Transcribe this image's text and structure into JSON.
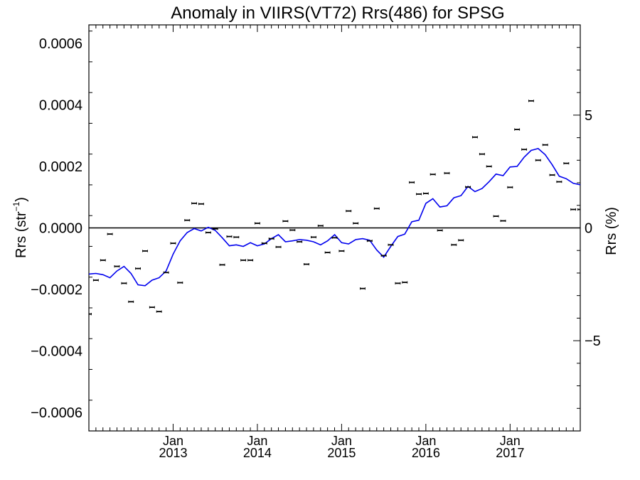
{
  "chart_data": {
    "type": "scatter",
    "title": "Anomaly in VIIRS(VT72) Rrs(486) for SPSG",
    "ylabel_left": "Rrs (str",
    "ylabel_left_sup": "−1",
    "ylabel_left_close": ")",
    "ylabel_right": "Rrs (%)",
    "xlim": [
      2012.0,
      2017.833
    ],
    "ylim": [
      -0.00066,
      0.00066
    ],
    "ylim_right": [
      -9.0,
      9.0
    ],
    "y_ticks": [
      {
        "value": 0.0006,
        "label": "0.0006"
      },
      {
        "value": 0.0004,
        "label": "0.0004"
      },
      {
        "value": 0.0002,
        "label": "0.0002"
      },
      {
        "value": 0.0,
        "label": "0.0000"
      },
      {
        "value": -0.0002,
        "label": "−0.0002"
      },
      {
        "value": -0.0004,
        "label": "−0.0004"
      },
      {
        "value": -0.0006,
        "label": "−0.0006"
      }
    ],
    "y_right_ticks": [
      {
        "value": 5,
        "label": "5"
      },
      {
        "value": 0,
        "label": "0"
      },
      {
        "value": -5,
        "label": "−5"
      }
    ],
    "x_ticks": [
      {
        "value": 2013.0,
        "month": "Jan",
        "year": "2013"
      },
      {
        "value": 2014.0,
        "month": "Jan",
        "year": "2014"
      },
      {
        "value": 2015.0,
        "month": "Jan",
        "year": "2015"
      },
      {
        "value": 2016.0,
        "month": "Jan",
        "year": "2016"
      },
      {
        "value": 2017.0,
        "month": "Jan",
        "year": "2017"
      }
    ],
    "zero_line": true,
    "grid": false,
    "series": [
      {
        "kind": "points",
        "color": "#000000",
        "x": [
          2012.0,
          2012.083,
          2012.167,
          2012.25,
          2012.333,
          2012.417,
          2012.5,
          2012.583,
          2012.667,
          2012.75,
          2012.833,
          2012.917,
          2013.0,
          2013.083,
          2013.167,
          2013.25,
          2013.333,
          2013.417,
          2013.5,
          2013.583,
          2013.667,
          2013.75,
          2013.833,
          2013.917,
          2014.0,
          2014.083,
          2014.167,
          2014.25,
          2014.333,
          2014.417,
          2014.5,
          2014.583,
          2014.667,
          2014.75,
          2014.833,
          2014.917,
          2015.0,
          2015.083,
          2015.167,
          2015.25,
          2015.333,
          2015.417,
          2015.5,
          2015.583,
          2015.667,
          2015.75,
          2015.833,
          2015.917,
          2016.0,
          2016.083,
          2016.167,
          2016.25,
          2016.333,
          2016.417,
          2016.5,
          2016.583,
          2016.667,
          2016.75,
          2016.833,
          2016.917,
          2017.0,
          2017.083,
          2017.167,
          2017.25,
          2017.333,
          2017.417,
          2017.5,
          2017.583,
          2017.667,
          2017.75,
          2017.833
        ],
        "y": [
          -0.00028,
          -0.00017,
          -0.000105,
          -2e-05,
          -0.000125,
          -0.00018,
          -0.00024,
          -0.000132,
          -7.5e-05,
          -0.000258,
          -0.000272,
          -0.000145,
          -5e-05,
          -0.000178,
          2.5e-05,
          8e-05,
          7.8e-05,
          -1.5e-05,
          -3e-06,
          -0.00012,
          -2.8e-05,
          -3e-05,
          -0.000105,
          -0.000105,
          1.5e-05,
          -5e-05,
          -3.5e-05,
          -6.2e-05,
          2.2e-05,
          -7e-06,
          -4.5e-05,
          -0.000118,
          -3e-05,
          7e-06,
          -8e-05,
          -3.2e-05,
          -7.5e-05,
          5.5e-05,
          1.5e-05,
          -0.000197,
          -4.2e-05,
          6.3e-05,
          -9e-05,
          -5.5e-05,
          -0.00018,
          -0.000177,
          0.000148,
          0.00011,
          0.000112,
          0.000174,
          -8e-06,
          0.000178,
          -5.5e-05,
          -4e-05,
          0.000133,
          0.000295,
          0.00024,
          0.0002,
          3.8e-05,
          2.3e-05,
          0.000132,
          0.00032,
          0.000255,
          0.000413,
          0.00022,
          0.00027,
          0.000172,
          0.00015,
          0.00021,
          6e-05,
          6e-05
        ]
      },
      {
        "kind": "line",
        "color": "#0000ee",
        "x": [
          2012.0,
          2012.083,
          2012.167,
          2012.25,
          2012.333,
          2012.417,
          2012.5,
          2012.583,
          2012.667,
          2012.75,
          2012.833,
          2012.917,
          2013.0,
          2013.083,
          2013.167,
          2013.25,
          2013.333,
          2013.417,
          2013.5,
          2013.583,
          2013.667,
          2013.75,
          2013.833,
          2013.917,
          2014.0,
          2014.083,
          2014.167,
          2014.25,
          2014.333,
          2014.417,
          2014.5,
          2014.583,
          2014.667,
          2014.75,
          2014.833,
          2014.917,
          2015.0,
          2015.083,
          2015.167,
          2015.25,
          2015.333,
          2015.417,
          2015.5,
          2015.583,
          2015.667,
          2015.75,
          2015.833,
          2015.917,
          2016.0,
          2016.083,
          2016.167,
          2016.25,
          2016.333,
          2016.417,
          2016.5,
          2016.583,
          2016.667,
          2016.75,
          2016.833,
          2016.917,
          2017.0,
          2017.083,
          2017.167,
          2017.25,
          2017.333,
          2017.417,
          2017.5,
          2017.583,
          2017.667,
          2017.75,
          2017.833
        ],
        "y": [
          -0.00015,
          -0.000148,
          -0.000152,
          -0.000162,
          -0.00014,
          -0.000125,
          -0.000148,
          -0.000185,
          -0.000188,
          -0.00017,
          -0.000162,
          -0.00014,
          -8.5e-05,
          -4.2e-05,
          -1.5e-05,
          -2e-06,
          -1e-05,
          2e-06,
          -8e-06,
          -3.2e-05,
          -5.8e-05,
          -5.5e-05,
          -6e-05,
          -4.8e-05,
          -5.8e-05,
          -5.2e-05,
          -3.5e-05,
          -2.2e-05,
          -4.5e-05,
          -4.2e-05,
          -3.8e-05,
          -4e-05,
          -4.5e-05,
          -5.5e-05,
          -4.2e-05,
          -2.2e-05,
          -4.8e-05,
          -5.2e-05,
          -3.8e-05,
          -3.5e-05,
          -4e-05,
          -7.2e-05,
          -9.5e-05,
          -6e-05,
          -2.8e-05,
          -2e-05,
          2e-05,
          2.5e-05,
          8e-05,
          9.5e-05,
          6.8e-05,
          7.2e-05,
          9.8e-05,
          0.000105,
          0.000135,
          0.000118,
          0.000128,
          0.00015,
          0.000175,
          0.00017,
          0.000198,
          0.0002,
          0.00023,
          0.000252,
          0.000258,
          0.000238,
          0.000205,
          0.000168,
          0.00016,
          0.000145,
          0.00014
        ]
      }
    ]
  }
}
